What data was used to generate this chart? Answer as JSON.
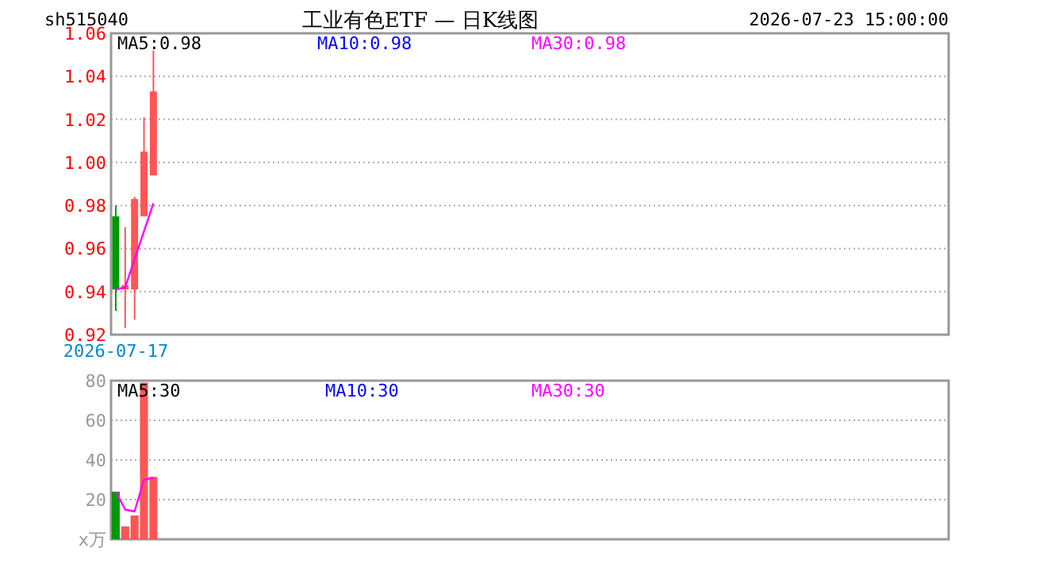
{
  "chart_data": [
    {
      "type": "candlestick",
      "title": "工业有色ETF — 日K线图",
      "annotations": [
        "sh515040",
        "2026-07-23 15:00:00",
        "MA5:0.98",
        "MA10:0.98",
        "MA30:0.98"
      ],
      "categories": [
        "2026-07-17",
        null,
        null,
        null,
        null,
        null,
        null,
        null,
        null,
        null,
        null,
        null,
        null,
        null,
        null,
        null,
        null,
        null,
        null,
        null,
        null,
        null,
        null,
        null,
        null,
        null,
        null,
        null,
        null,
        null,
        null,
        null,
        null,
        null,
        null,
        null,
        null,
        null,
        null,
        null,
        null,
        null,
        null,
        null,
        null,
        null,
        null,
        null,
        null,
        null,
        null,
        null,
        null,
        null,
        null,
        null,
        null,
        null,
        null,
        null,
        null,
        null,
        null,
        null,
        null,
        null,
        null,
        null,
        null,
        null,
        null,
        null,
        null,
        null,
        null,
        null,
        null,
        null,
        null,
        null,
        null,
        null,
        null,
        null,
        null,
        null,
        null,
        null,
        null
      ],
      "ohlc": [
        [
          0.975,
          0.98,
          0.931,
          0.941
        ],
        [
          0.941,
          0.97,
          0.923,
          0.943
        ],
        [
          0.941,
          0.984,
          0.927,
          0.983
        ],
        [
          0.975,
          1.021,
          0.975,
          1.005
        ],
        [
          0.994,
          1.052,
          0.994,
          1.033
        ],
        null,
        null,
        null,
        null,
        null,
        null,
        null,
        null,
        null,
        null,
        null,
        null,
        null,
        null,
        null,
        null,
        null,
        null,
        null,
        null,
        null,
        null,
        null,
        null,
        null,
        null,
        null,
        null,
        null,
        null,
        null,
        null,
        null,
        null,
        null,
        null,
        null,
        null,
        null,
        null,
        null,
        null,
        null,
        null,
        null,
        null,
        null,
        null,
        null,
        null,
        null,
        null,
        null,
        null,
        null,
        null,
        null,
        null,
        null,
        null,
        null,
        null,
        null,
        null,
        null,
        null,
        null,
        null,
        null,
        null,
        null,
        null,
        null,
        null,
        null,
        null,
        null,
        null,
        null,
        null,
        null,
        null,
        null,
        null
      ],
      "colors": [
        "#009900",
        "#ff5555",
        "#ff5555",
        "#ff5555",
        "#ff5555",
        null,
        null,
        null,
        null,
        null,
        null,
        null,
        null,
        null,
        null,
        null,
        null,
        null,
        null,
        null,
        null,
        null,
        null,
        null,
        null,
        null,
        null,
        null,
        null,
        null,
        null,
        null,
        null,
        null,
        null,
        null,
        null,
        null,
        null,
        null,
        null,
        null,
        null,
        null,
        null,
        null,
        null,
        null,
        null,
        null,
        null,
        null,
        null,
        null,
        null,
        null,
        null,
        null,
        null,
        null,
        null,
        null,
        null,
        null,
        null,
        null,
        null,
        null,
        null,
        null,
        null,
        null,
        null,
        null,
        null,
        null,
        null,
        null,
        null,
        null,
        null,
        null,
        null,
        null,
        null,
        null,
        null,
        null,
        null
      ],
      "series": [
        {
          "type": "line",
          "color": "#ff00ff",
          "values": [
            0.941,
            0.942,
            0.955,
            0.968,
            0.981,
            null,
            null,
            null,
            null,
            null,
            null,
            null,
            null,
            null,
            null,
            null,
            null,
            null,
            null,
            null,
            null,
            null,
            null,
            null,
            null,
            null,
            null,
            null,
            null,
            null,
            null,
            null,
            null,
            null,
            null,
            null,
            null,
            null,
            null,
            null,
            null,
            null,
            null,
            null,
            null,
            null,
            null,
            null,
            null,
            null,
            null,
            null,
            null,
            null,
            null,
            null,
            null,
            null,
            null,
            null,
            null,
            null,
            null,
            null,
            null,
            null,
            null,
            null,
            null,
            null,
            null,
            null,
            null,
            null,
            null,
            null,
            null,
            null,
            null,
            null,
            null,
            null,
            null,
            null,
            null,
            null,
            null,
            null,
            null
          ]
        }
      ],
      "ylim": [
        0.92,
        1.06
      ],
      "yticks": [
        0.92,
        0.94,
        0.96,
        0.98,
        {
          "value": 1,
          "label": "1.00"
        },
        1.02,
        1.04,
        1.06
      ],
      "grid": "y"
    },
    {
      "type": "bar",
      "annotations": [
        "MA5:30",
        "MA10:30",
        "MA30:30"
      ],
      "categories": [
        null,
        null,
        null,
        null,
        null,
        null,
        null,
        null,
        null,
        null,
        null,
        null,
        null,
        null,
        null,
        null,
        null,
        null,
        null,
        null,
        null,
        null,
        null,
        null,
        null,
        null,
        null,
        null,
        null,
        null,
        null,
        null,
        null,
        null,
        null,
        null,
        null,
        null,
        null,
        null,
        null,
        null,
        null,
        null,
        null,
        null,
        null,
        null,
        null,
        null,
        null,
        null,
        null,
        null,
        null,
        null,
        null,
        null,
        null,
        null,
        null,
        null,
        null,
        null,
        null,
        null,
        null,
        null,
        null,
        null,
        null,
        null,
        null,
        null,
        null,
        null,
        null,
        null,
        null,
        null,
        null,
        null,
        null,
        null,
        null,
        null,
        null,
        null,
        null
      ],
      "values": [
        24,
        6.5,
        12,
        79,
        31.5,
        null,
        null,
        null,
        null,
        null,
        null,
        null,
        null,
        null,
        null,
        null,
        null,
        null,
        null,
        null,
        null,
        null,
        null,
        null,
        null,
        null,
        null,
        null,
        null,
        null,
        null,
        null,
        null,
        null,
        null,
        null,
        null,
        null,
        null,
        null,
        null,
        null,
        null,
        null,
        null,
        null,
        null,
        null,
        null,
        null,
        null,
        null,
        null,
        null,
        null,
        null,
        null,
        null,
        null,
        null,
        null,
        null,
        null,
        null,
        null,
        null,
        null,
        null,
        null,
        null,
        null,
        null,
        null,
        null,
        null,
        null,
        null,
        null,
        null,
        null,
        null,
        null,
        null,
        null,
        null,
        null,
        null,
        null,
        null
      ],
      "colors": [
        "#009900",
        "#ff5555",
        "#ff5555",
        "#ff5555",
        "#ff5555",
        null,
        null,
        null,
        null,
        null,
        null,
        null,
        null,
        null,
        null,
        null,
        null,
        null,
        null,
        null,
        null,
        null,
        null,
        null,
        null,
        null,
        null,
        null,
        null,
        null,
        null,
        null,
        null,
        null,
        null,
        null,
        null,
        null,
        null,
        null,
        null,
        null,
        null,
        null,
        null,
        null,
        null,
        null,
        null,
        null,
        null,
        null,
        null,
        null,
        null,
        null,
        null,
        null,
        null,
        null,
        null,
        null,
        null,
        null,
        null,
        null,
        null,
        null,
        null,
        null,
        null,
        null,
        null,
        null,
        null,
        null,
        null,
        null,
        null,
        null,
        null,
        null,
        null,
        null,
        null,
        null,
        null,
        null,
        null
      ],
      "series": [
        {
          "type": "line",
          "color": "#ff00ff",
          "values": [
            24,
            15,
            14,
            30,
            31,
            null,
            null,
            null,
            null,
            null,
            null,
            null,
            null,
            null,
            null,
            null,
            null,
            null,
            null,
            null,
            null,
            null,
            null,
            null,
            null,
            null,
            null,
            null,
            null,
            null,
            null,
            null,
            null,
            null,
            null,
            null,
            null,
            null,
            null,
            null,
            null,
            null,
            null,
            null,
            null,
            null,
            null,
            null,
            null,
            null,
            null,
            null,
            null,
            null,
            null,
            null,
            null,
            null,
            null,
            null,
            null,
            null,
            null,
            null,
            null,
            null,
            null,
            null,
            null,
            null,
            null,
            null,
            null,
            null,
            null,
            null,
            null,
            null,
            null,
            null,
            null,
            null,
            null,
            null,
            null,
            null,
            null,
            null,
            null
          ]
        }
      ],
      "ylim": [
        0,
        80
      ],
      "yticks": [
        {
          "value": 0,
          "label": "x万"
        },
        20,
        40,
        60,
        80
      ],
      "grid": "y",
      "tick_labels": "y"
    }
  ]
}
